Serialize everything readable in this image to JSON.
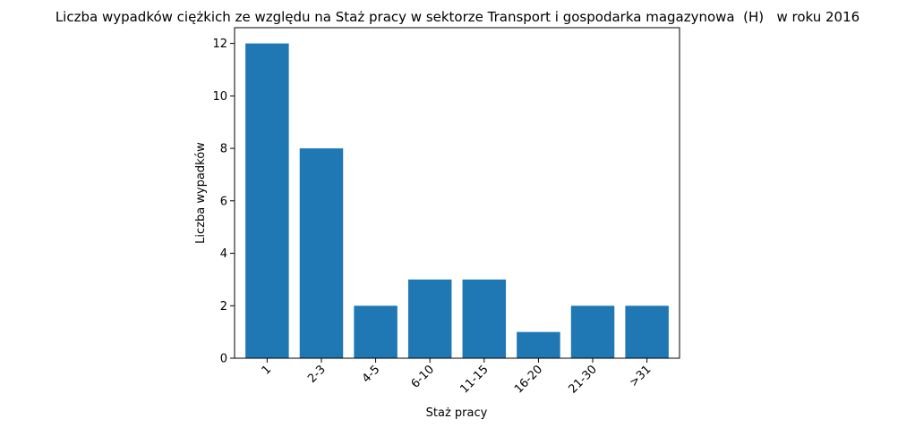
{
  "chart_data": {
    "type": "bar",
    "title": "Liczba wypadków ciężkich ze względu na Staż pracy w sektorze Transport i gospodarka magazynowa  (H)   w roku 2016",
    "xlabel": "Staż pracy",
    "ylabel": "Liczba wypadków",
    "categories": [
      "1",
      "2-3",
      "4-5",
      "6-10",
      "11-15",
      "16-20",
      "21-30",
      ">31"
    ],
    "values": [
      12,
      8,
      2,
      3,
      3,
      1,
      2,
      2
    ],
    "ylim": [
      0,
      12.6
    ],
    "yticks": [
      "0",
      "2",
      "4",
      "6",
      "8",
      "10",
      "12"
    ],
    "bar_color": "#1f77b4",
    "grid": false,
    "legend": "none",
    "x_tick_rotation": "45 degrees"
  }
}
